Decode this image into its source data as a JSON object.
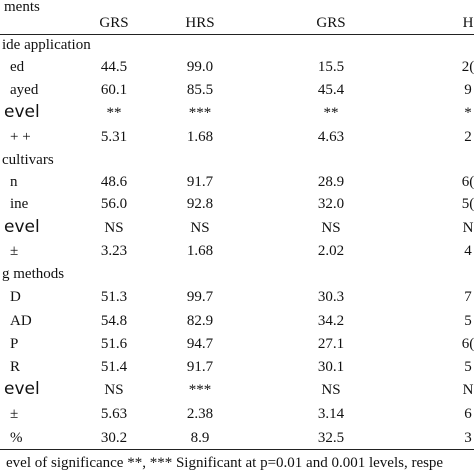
{
  "table": {
    "title": "ments",
    "columns": [
      "GRS",
      "HRS",
      "GRS",
      "H"
    ],
    "rows": [
      [
        "ide application"
      ],
      [
        "ed",
        "44.5",
        "99.0",
        "15.5",
        "2("
      ],
      [
        "ayed",
        "60.1",
        "85.5",
        "45.4",
        "9"
      ],
      [
        "evel",
        "**",
        "***",
        "**",
        "*"
      ],
      [
        "+ +",
        "5.31",
        "1.68",
        "4.63",
        "2"
      ],
      [
        "cultivars"
      ],
      [
        "n",
        "48.6",
        "91.7",
        "28.9",
        "6("
      ],
      [
        "ine",
        "56.0",
        "92.8",
        "32.0",
        "5("
      ],
      [
        "evel",
        "NS",
        "NS",
        "NS",
        "N"
      ],
      [
        "±",
        "3.23",
        "1.68",
        "2.02",
        "4"
      ],
      [
        "g methods"
      ],
      [
        "D",
        "51.3",
        "99.7",
        "30.3",
        "7"
      ],
      [
        "AD",
        "54.8",
        "82.9",
        "34.2",
        "5"
      ],
      [
        "P",
        "51.6",
        "94.7",
        "27.1",
        "6("
      ],
      [
        "R",
        "51.4",
        "91.7",
        "30.1",
        "5"
      ],
      [
        "evel",
        "NS",
        "***",
        "NS",
        "N"
      ],
      [
        "±",
        "5.63",
        "2.38",
        "3.14",
        "6"
      ],
      [
        "%",
        "30.2",
        "8.9",
        "32.5",
        "3"
      ]
    ],
    "footnote": "evel of significance **, *** Significant at p=0.01 and 0.001 levels, respe"
  }
}
